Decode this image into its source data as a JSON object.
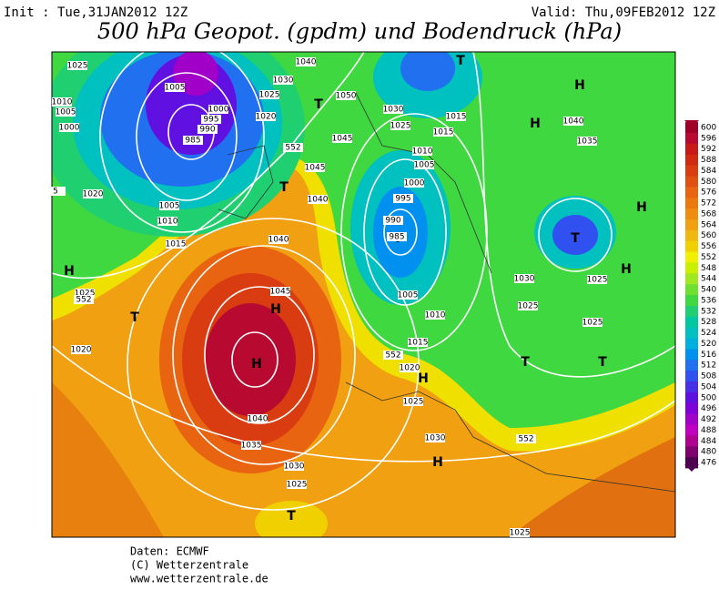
{
  "header": {
    "init": "Init : Tue,31JAN2012 12Z",
    "valid": "Valid: Thu,09FEB2012 12Z",
    "title": "500 hPa Geopot. (gpdm) und Bodendruck (hPa)"
  },
  "map": {
    "labels": [
      "H",
      "H",
      "H",
      "H",
      "H",
      "H",
      "H",
      "H",
      "H",
      "T",
      "T",
      "T",
      "T",
      "T",
      "T",
      "T",
      "T",
      "T",
      "1025",
      "1005",
      "1000",
      "995",
      "990",
      "985",
      "1010",
      "1005",
      "1000",
      "1020",
      "1005",
      "1010",
      "1015",
      "1025",
      "552",
      "1020",
      "1040",
      "1045",
      "1040",
      "1035",
      "1030",
      "1025",
      "1040",
      "1030",
      "1025",
      "1020",
      "1050",
      "1045",
      "1045",
      "1040",
      "552",
      "1030",
      "1025",
      "1015",
      "1015",
      "1010",
      "1005",
      "1000",
      "995",
      "990",
      "985",
      "1005",
      "1010",
      "1015",
      "552",
      "1020",
      "1025",
      "1030",
      "552",
      "1040",
      "1035",
      "1030",
      "1025",
      "1025",
      "1025",
      "1025",
      "5"
    ]
  },
  "colorbar": {
    "levels": [
      600,
      596,
      592,
      588,
      584,
      580,
      576,
      572,
      568,
      564,
      560,
      556,
      552,
      548,
      544,
      540,
      536,
      532,
      528,
      524,
      520,
      516,
      512,
      508,
      504,
      500,
      496,
      492,
      488,
      484,
      480,
      476
    ],
    "colors": [
      "#a00028",
      "#b80a30",
      "#c81818",
      "#d02a10",
      "#d83c10",
      "#e05010",
      "#e86410",
      "#ec7810",
      "#f08c10",
      "#f0a010",
      "#f0b810",
      "#f0d000",
      "#f0f000",
      "#c8f000",
      "#a0e820",
      "#70e030",
      "#40d840",
      "#20d070",
      "#00c8a0",
      "#00c0c0",
      "#00b0e0",
      "#0090f0",
      "#2070f0",
      "#3050f0",
      "#4830e8",
      "#6010e0",
      "#8000d8",
      "#a000c8",
      "#c000c0",
      "#b00090",
      "#800070",
      "#500050"
    ]
  },
  "footer": {
    "lines": [
      "Daten: ECMWF",
      "(C) Wetterzentrale",
      "www.wetterzentrale.de"
    ]
  }
}
